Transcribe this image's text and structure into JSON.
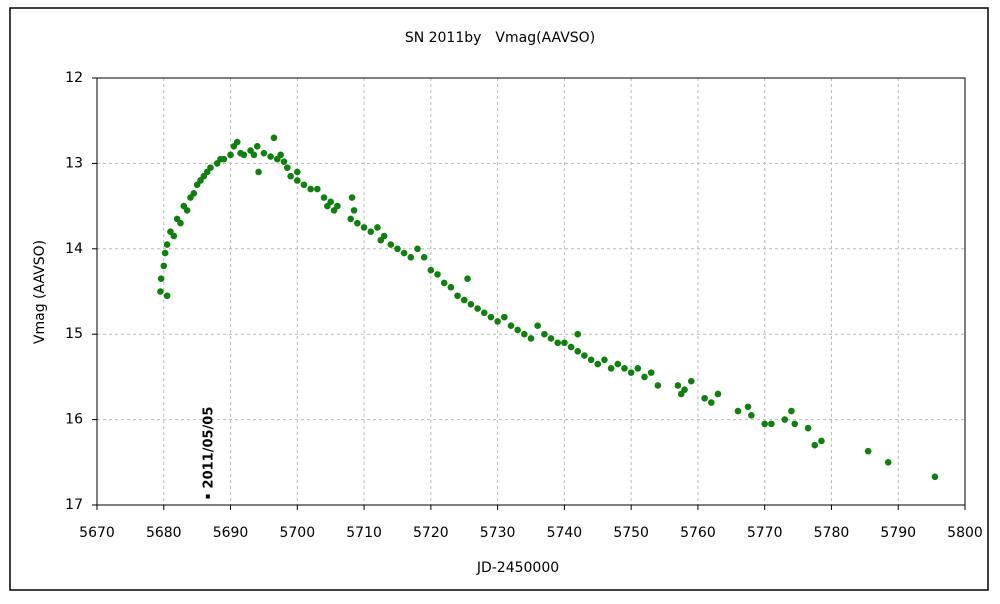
{
  "chart_data": {
    "type": "scatter",
    "title": "SN 2011by　Vmag(AAVSO)",
    "x_label": "JD-2450000",
    "y_label": "Vmag (AAVSO)",
    "xlim": [
      5670,
      5800
    ],
    "xticks": [
      5670,
      5680,
      5690,
      5700,
      5710,
      5720,
      5730,
      5740,
      5750,
      5760,
      5770,
      5780,
      5790,
      5800
    ],
    "ylim": [
      12,
      17
    ],
    "yticks": [
      12,
      13,
      14,
      15,
      16,
      17
    ],
    "y_inverted": true,
    "grid": true,
    "annotation": {
      "text": "2011/05/05",
      "x": 5686.6,
      "y": 16.9
    },
    "series": [
      {
        "name": "Vmag",
        "color": "#0e800e",
        "x": [
          5679.5,
          5679.6,
          5680,
          5680.2,
          5680.5,
          5680.5,
          5681,
          5681.5,
          5682,
          5682.5,
          5683,
          5683.5,
          5684,
          5684.5,
          5685,
          5685.5,
          5686,
          5686.5,
          5687,
          5688,
          5688.5,
          5689,
          5690,
          5690.5,
          5691,
          5691.5,
          5692,
          5693,
          5693.5,
          5694,
          5694.2,
          5695,
          5696,
          5696.5,
          5697,
          5697.5,
          5698,
          5698.5,
          5699,
          5700,
          5700,
          5701,
          5702,
          5703,
          5704,
          5704.5,
          5705,
          5705.5,
          5706,
          5708,
          5708.2,
          5708.5,
          5709,
          5710,
          5711,
          5712,
          5712.5,
          5713,
          5714,
          5715,
          5716,
          5717,
          5718,
          5719,
          5720,
          5721,
          5722,
          5723,
          5724,
          5725,
          5725.5,
          5726,
          5727,
          5728,
          5729,
          5730,
          5731,
          5732,
          5733,
          5734,
          5735,
          5736,
          5737,
          5738,
          5739,
          5740,
          5741,
          5742,
          5742,
          5743,
          5744,
          5745,
          5746,
          5747,
          5748,
          5749,
          5750,
          5751,
          5752,
          5753,
          5754,
          5757,
          5757.5,
          5758,
          5759,
          5761,
          5762,
          5763,
          5766,
          5767.5,
          5768,
          5770,
          5771,
          5773,
          5774,
          5774.5,
          5776.5,
          5777.5,
          5778.5,
          5785.5,
          5788.5,
          5795.5
        ],
        "values": [
          14.5,
          14.35,
          14.2,
          14.05,
          14.55,
          13.95,
          13.8,
          13.85,
          13.65,
          13.7,
          13.5,
          13.55,
          13.4,
          13.35,
          13.25,
          13.2,
          13.15,
          13.1,
          13.05,
          13.0,
          12.95,
          12.95,
          12.9,
          12.8,
          12.75,
          12.88,
          12.9,
          12.85,
          12.9,
          12.8,
          13.1,
          12.88,
          12.92,
          12.7,
          12.95,
          12.9,
          12.98,
          13.05,
          13.15,
          13.1,
          13.2,
          13.25,
          13.3,
          13.3,
          13.4,
          13.5,
          13.45,
          13.55,
          13.5,
          13.65,
          13.4,
          13.55,
          13.7,
          13.75,
          13.8,
          13.75,
          13.9,
          13.85,
          13.95,
          14.0,
          14.05,
          14.1,
          14.0,
          14.1,
          14.25,
          14.3,
          14.4,
          14.45,
          14.55,
          14.6,
          14.35,
          14.65,
          14.7,
          14.75,
          14.8,
          14.85,
          14.8,
          14.9,
          14.95,
          15.0,
          15.05,
          14.9,
          15.0,
          15.05,
          15.1,
          15.1,
          15.15,
          15.2,
          15.0,
          15.25,
          15.3,
          15.35,
          15.3,
          15.4,
          15.35,
          15.4,
          15.45,
          15.4,
          15.5,
          15.45,
          15.6,
          15.6,
          15.7,
          15.65,
          15.55,
          15.75,
          15.8,
          15.7,
          15.9,
          15.85,
          15.95,
          16.05,
          16.05,
          16.0,
          15.9,
          16.05,
          16.1,
          16.3,
          16.25,
          16.37,
          16.5,
          16.67
        ]
      }
    ]
  }
}
